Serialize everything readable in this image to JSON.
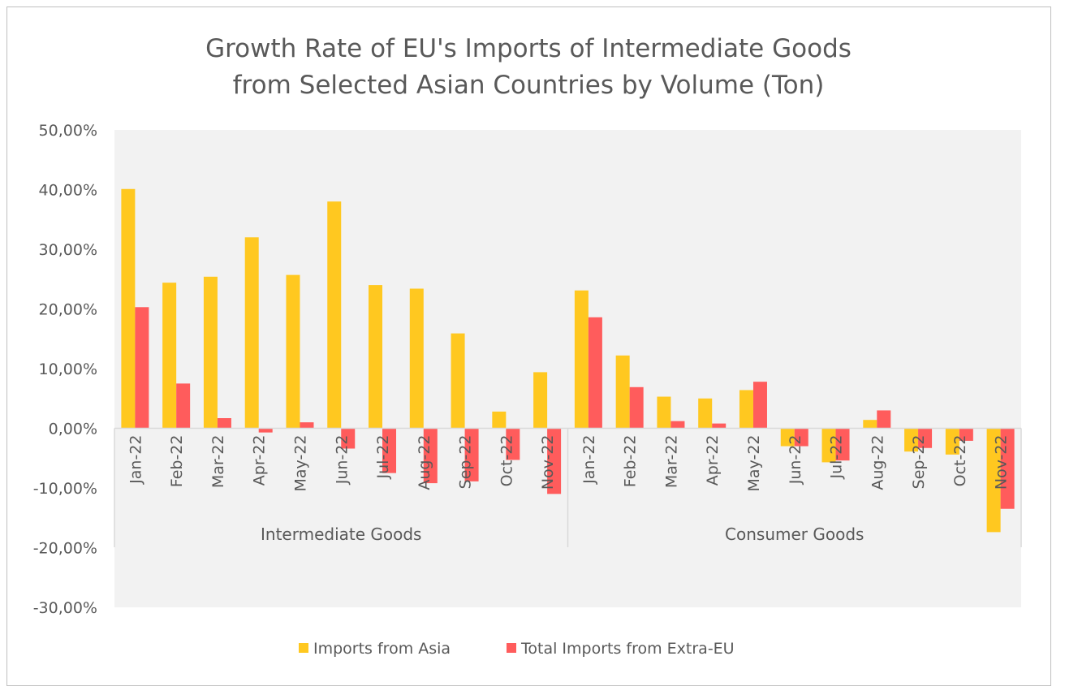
{
  "chart_data": {
    "type": "bar",
    "title": [
      "Growth Rate of EU's Imports of Intermediate Goods",
      "from Selected Asian Countries by Volume (Ton)"
    ],
    "xlabel": "",
    "ylabel": "",
    "ylim": [
      -30,
      50
    ],
    "yticks": [
      50,
      40,
      30,
      20,
      10,
      0,
      -10,
      -20,
      -30
    ],
    "ytick_labels": [
      "50,00%",
      "40,00%",
      "30,00%",
      "20,00%",
      "10,00%",
      "0,00%",
      "-10,00%",
      "-20,00%",
      "-30,00%"
    ],
    "grid": false,
    "legend": "bottom",
    "groups": [
      {
        "name": "Intermediate Goods",
        "categories": [
          "Jan-22",
          "Feb-22",
          "Mar-22",
          "Apr-22",
          "May-22",
          "Jun-22",
          "Jul-22",
          "Aug-22",
          "Sep-22",
          "Oct-22",
          "Nov-22"
        ],
        "series": [
          {
            "name": "Imports from Asia",
            "values": [
              40.1,
              24.4,
              25.4,
              32.0,
              25.7,
              38.0,
              24.0,
              23.4,
              15.9,
              2.8,
              9.4
            ]
          },
          {
            "name": "Total Imports from Extra-EU",
            "values": [
              20.3,
              7.5,
              1.7,
              -0.7,
              1.0,
              -3.4,
              -7.5,
              -9.2,
              -8.9,
              -5.3,
              -11.0
            ]
          }
        ]
      },
      {
        "name": "Consumer Goods",
        "categories": [
          "Jan-22",
          "Feb-22",
          "Mar-22",
          "Apr-22",
          "May-22",
          "Jun-22",
          "Jul-22",
          "Aug-22",
          "Sep-22",
          "Oct-22",
          "Nov-22"
        ],
        "series": [
          {
            "name": "Imports from Asia",
            "values": [
              23.1,
              12.2,
              5.3,
              5.0,
              6.4,
              -3.0,
              -5.7,
              1.4,
              -3.9,
              -4.4,
              -17.4
            ]
          },
          {
            "name": "Total Imports from Extra-EU",
            "values": [
              18.6,
              6.9,
              1.2,
              0.8,
              7.8,
              -3.0,
              -5.4,
              3.0,
              -3.3,
              -2.1,
              -13.5
            ]
          }
        ]
      }
    ],
    "series_names": [
      "Imports from Asia",
      "Total Imports from Extra-EU"
    ],
    "colors": {
      "Imports from Asia": "#FFC820",
      "Total Imports from Extra-EU": "#FF5C5C",
      "plot_bg": "#F2F2F2",
      "text": "#595959"
    }
  }
}
